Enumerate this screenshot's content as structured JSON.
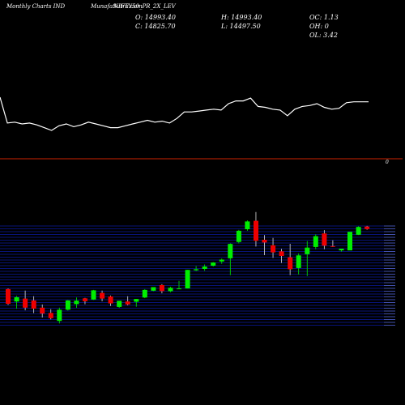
{
  "header": {
    "left": "Monthly Charts IND",
    "center": "MunafaSutra.com",
    "symbol": "NIFTY50_PR_2X_LEV"
  },
  "ohlc": {
    "open": "O: 14993.40",
    "high": "H: 14993.40",
    "oc": "OC: 1.13",
    "close": "C: 14825.70",
    "low": "L: 14497.50",
    "oh": "OH: 0",
    "ol": "OL: 3.42"
  },
  "colors": {
    "background": "#000000",
    "line": "#ffffff",
    "separator": "#cc2200",
    "bull": "#00ee00",
    "bear": "#ee0000",
    "grid": "#0a1aa0"
  },
  "line_label": "0",
  "chart_data": [
    {
      "type": "line",
      "title": "",
      "values": [
        100,
        72,
        73,
        71,
        72,
        70,
        67,
        64,
        69,
        71,
        68,
        70,
        73,
        71,
        69,
        67,
        67,
        69,
        71,
        73,
        75,
        73,
        74,
        72,
        77,
        84,
        84,
        85,
        86,
        87,
        86,
        93,
        96,
        96,
        99,
        90,
        89,
        87,
        86,
        80,
        87,
        90,
        91,
        93,
        89,
        87,
        88,
        94,
        95,
        95,
        95
      ]
    },
    {
      "type": "candlestick",
      "title": "",
      "candles": [
        {
          "o": 1.2,
          "h": 1.5,
          "l": -6.3,
          "c": -5.8
        },
        {
          "o": -4.7,
          "h": -2.0,
          "l": -8.1,
          "c": -2.7
        },
        {
          "o": -3.3,
          "h": 0.5,
          "l": -8.9,
          "c": -7.6
        },
        {
          "o": -4.2,
          "h": -2.2,
          "l": -10.2,
          "c": -8.1
        },
        {
          "o": -7.6,
          "h": -6.1,
          "l": -12.3,
          "c": -10.4
        },
        {
          "o": -10.1,
          "h": -8.3,
          "l": -13.2,
          "c": -12.6
        },
        {
          "o": -13.9,
          "h": -7.6,
          "l": -15.1,
          "c": -8.6
        },
        {
          "o": -8.6,
          "h": -4.0,
          "l": -9.0,
          "c": -4.2
        },
        {
          "o": -5.9,
          "h": -2.8,
          "l": -7.7,
          "c": -4.3
        },
        {
          "o": -3.2,
          "h": -3.0,
          "l": -6.0,
          "c": -4.6
        },
        {
          "o": -3.8,
          "h": 0.8,
          "l": -4.0,
          "c": 0.6
        },
        {
          "o": -0.6,
          "h": 0.5,
          "l": -4.6,
          "c": -3.3
        },
        {
          "o": -2.3,
          "h": -1.9,
          "l": -6.8,
          "c": -5.6
        },
        {
          "o": -7.3,
          "h": -4.4,
          "l": -7.7,
          "c": -4.4
        },
        {
          "o": -4.7,
          "h": -2.2,
          "l": -6.5,
          "c": -6.1
        },
        {
          "o": -4.8,
          "h": -3.5,
          "l": -7.2,
          "c": -3.5
        },
        {
          "o": -2.8,
          "h": 1.2,
          "l": -3.1,
          "c": 0.8
        },
        {
          "o": 0.4,
          "h": 2.1,
          "l": 0.2,
          "c": 2.1
        },
        {
          "o": 3.1,
          "h": 3.5,
          "l": -0.8,
          "c": 0.2
        },
        {
          "o": 0.2,
          "h": 2.3,
          "l": -0.3,
          "c": 1.8
        },
        {
          "o": 1.5,
          "h": 5.1,
          "l": 1.2,
          "c": 1.5
        },
        {
          "o": 1.5,
          "h": 10.3,
          "l": 1.5,
          "c": 10.3
        },
        {
          "o": 10.1,
          "h": 12.1,
          "l": 9.8,
          "c": 10.6
        },
        {
          "o": 10.8,
          "h": 12.9,
          "l": 9.9,
          "c": 11.9
        },
        {
          "o": 12.3,
          "h": 14.0,
          "l": 11.9,
          "c": 13.8
        },
        {
          "o": 14.3,
          "h": 15.7,
          "l": 13.2,
          "c": 15.2
        },
        {
          "o": 15.8,
          "h": 22.9,
          "l": 7.8,
          "c": 22.6
        },
        {
          "o": 23.6,
          "h": 29.3,
          "l": 22.9,
          "c": 28.9
        },
        {
          "o": 29.6,
          "h": 33.8,
          "l": 28.9,
          "c": 33.3
        },
        {
          "o": 33.6,
          "h": 37.8,
          "l": 21.4,
          "c": 24.1
        },
        {
          "o": 24.6,
          "h": 26.8,
          "l": 17.3,
          "c": 23.3
        },
        {
          "o": 22.0,
          "h": 25.5,
          "l": 16.0,
          "c": 18.6
        },
        {
          "o": 19.1,
          "h": 20.3,
          "l": 13.6,
          "c": 16.9
        },
        {
          "o": 16.3,
          "h": 22.7,
          "l": 7.8,
          "c": 10.6
        },
        {
          "o": 11.2,
          "h": 18.1,
          "l": 8.1,
          "c": 17.2
        },
        {
          "o": 17.8,
          "h": 24.0,
          "l": 7.4,
          "c": 20.9
        },
        {
          "o": 21.2,
          "h": 27.2,
          "l": 20.1,
          "c": 26.3
        },
        {
          "o": 27.6,
          "h": 29.2,
          "l": 20.1,
          "c": 21.8
        },
        {
          "o": 21.6,
          "h": 24.4,
          "l": 21.2,
          "c": 21.2
        },
        {
          "o": 19.6,
          "h": 20.4,
          "l": 19.0,
          "c": 20.4
        },
        {
          "o": 19.6,
          "h": 28.4,
          "l": 19.6,
          "c": 28.4
        },
        {
          "o": 27.0,
          "h": 31.0,
          "l": 26.9,
          "c": 30.7
        },
        {
          "o": 30.9,
          "h": 31.2,
          "l": 29.4,
          "c": 29.7
        }
      ]
    }
  ]
}
